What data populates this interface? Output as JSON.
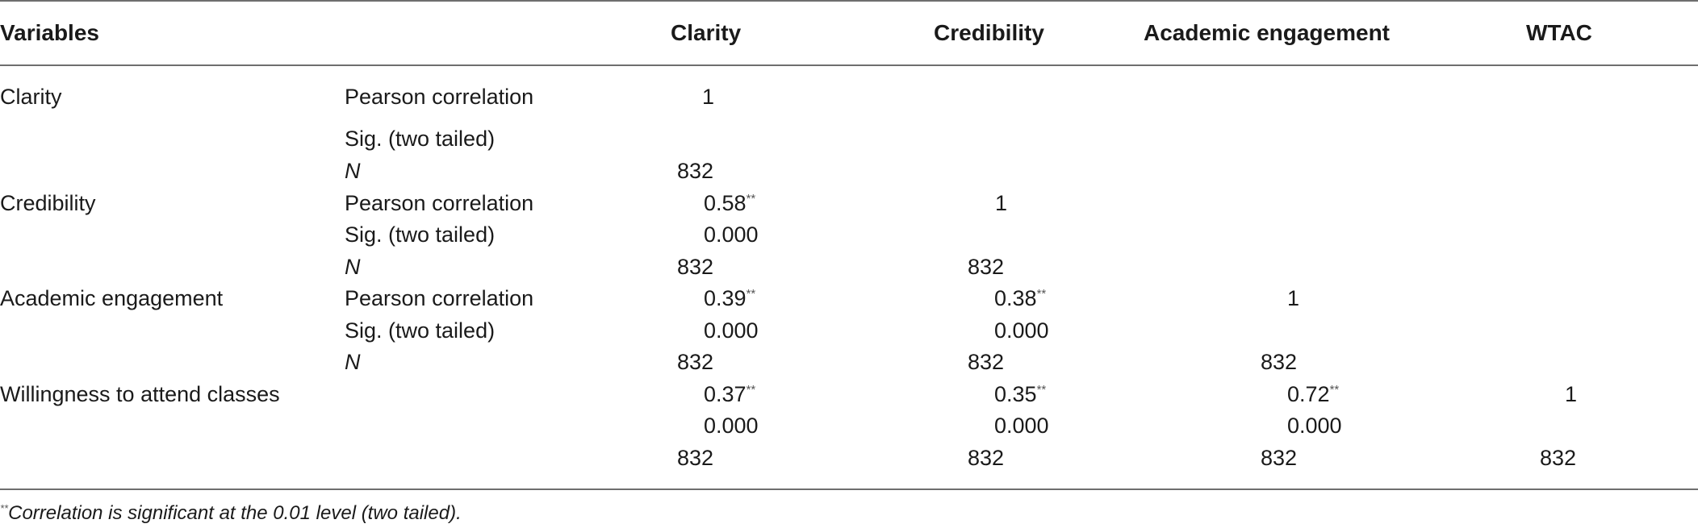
{
  "headers": {
    "variables": "Variables",
    "clarity": "Clarity",
    "credibility": "Credibility",
    "academic_engagement": "Academic engagement",
    "wtac": "WTAC"
  },
  "rows": [
    {
      "variable": "Clarity",
      "stats": [
        "Pearson correlation",
        "Sig. (two tailed)",
        "N"
      ],
      "clarity": [
        "1",
        "",
        "832"
      ]
    },
    {
      "variable": "Credibility",
      "stats": [
        "Pearson correlation",
        "Sig. (two tailed)",
        "N"
      ],
      "clarity": [
        "0.58",
        "0.000",
        "832"
      ],
      "credibility": [
        "1",
        "",
        "832"
      ]
    },
    {
      "variable": "Academic engagement",
      "stats": [
        "Pearson correlation",
        "Sig. (two tailed)",
        "N"
      ],
      "clarity": [
        "0.39",
        "0.000",
        "832"
      ],
      "credibility": [
        "0.38",
        "0.000",
        "832"
      ],
      "academic_engagement": [
        "1",
        "",
        "832"
      ]
    },
    {
      "variable": "Willingness to attend classes",
      "clarity": [
        "0.37",
        "0.000",
        "832"
      ],
      "credibility": [
        "0.35",
        "0.000",
        "832"
      ],
      "academic_engagement": [
        "0.72",
        "0.000",
        "832"
      ],
      "wtac": [
        "1",
        "",
        "832"
      ]
    }
  ],
  "significance_marker": "**",
  "footnote": {
    "marker": "**",
    "text": "Correlation is significant at the 0.01 level (two tailed)."
  }
}
